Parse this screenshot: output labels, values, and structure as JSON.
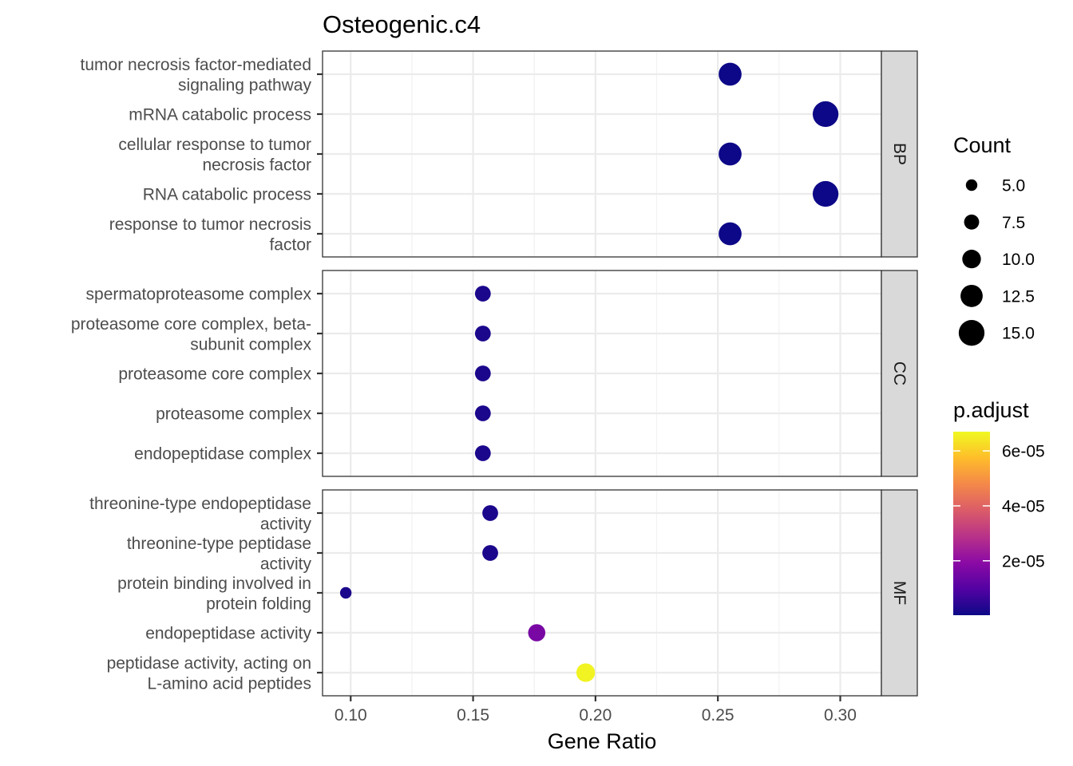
{
  "chart_data": {
    "type": "scatter",
    "title": "Osteogenic.c4",
    "xlabel": "Gene Ratio",
    "ylabel": "",
    "xlim": [
      0.0885,
      0.3168
    ],
    "xticks": [
      0.1,
      0.15,
      0.2,
      0.25,
      0.3
    ],
    "xtick_labels": [
      "0.10",
      "0.15",
      "0.20",
      "0.25",
      "0.30"
    ],
    "grid": true,
    "facets": [
      {
        "name": "BP",
        "terms": [
          {
            "label": "tumor necrosis factor-mediated\nsignaling pathway",
            "gene_ratio": 0.255,
            "count": 13,
            "p_adjust": 2e-07
          },
          {
            "label": "mRNA catabolic process",
            "gene_ratio": 0.294,
            "count": 15,
            "p_adjust": 2e-07
          },
          {
            "label": "cellular response to tumor\nnecrosis factor",
            "gene_ratio": 0.255,
            "count": 13,
            "p_adjust": 2e-07
          },
          {
            "label": "RNA catabolic process",
            "gene_ratio": 0.294,
            "count": 15,
            "p_adjust": 2e-07
          },
          {
            "label": "response to tumor necrosis\nfactor",
            "gene_ratio": 0.255,
            "count": 13,
            "p_adjust": 2e-07
          }
        ]
      },
      {
        "name": "CC",
        "terms": [
          {
            "label": "spermatoproteasome complex",
            "gene_ratio": 0.154,
            "count": 8,
            "p_adjust": 2e-06
          },
          {
            "label": "proteasome core complex, beta-\nsubunit complex",
            "gene_ratio": 0.154,
            "count": 8,
            "p_adjust": 2e-06
          },
          {
            "label": "proteasome core complex",
            "gene_ratio": 0.154,
            "count": 8,
            "p_adjust": 2e-06
          },
          {
            "label": "proteasome complex",
            "gene_ratio": 0.154,
            "count": 8,
            "p_adjust": 2e-06
          },
          {
            "label": "endopeptidase complex",
            "gene_ratio": 0.154,
            "count": 8,
            "p_adjust": 2e-06
          }
        ]
      },
      {
        "name": "MF",
        "terms": [
          {
            "label": "threonine-type endopeptidase\nactivity",
            "gene_ratio": 0.157,
            "count": 8,
            "p_adjust": 2e-06
          },
          {
            "label": "threonine-type peptidase\nactivity",
            "gene_ratio": 0.157,
            "count": 8,
            "p_adjust": 2e-06
          },
          {
            "label": "protein binding involved in\nprotein folding",
            "gene_ratio": 0.098,
            "count": 5,
            "p_adjust": 2e-06
          },
          {
            "label": "endopeptidase activity",
            "gene_ratio": 0.176,
            "count": 9,
            "p_adjust": 1.6e-05
          },
          {
            "label": "peptidase activity, acting on\nL-amino acid peptides",
            "gene_ratio": 0.196,
            "count": 10,
            "p_adjust": 6.6e-05
          }
        ]
      }
    ],
    "size_legend": {
      "title": "Count",
      "breaks": [
        5.0,
        7.5,
        10.0,
        12.5,
        15.0
      ],
      "labels": [
        "5.0",
        "7.5",
        "10.0",
        "12.5",
        "15.0"
      ]
    },
    "color_legend": {
      "title": "p.adjust",
      "range": [
        2e-07,
        6.7e-05
      ],
      "breaks": [
        2e-05,
        4e-05,
        6e-05
      ],
      "labels": [
        "2e-05",
        "4e-05",
        "6e-05"
      ],
      "colors": [
        "#0d0887",
        "#5302a3",
        "#8b0aa5",
        "#b83289",
        "#db5c68",
        "#f48849",
        "#febd2a",
        "#f0f921"
      ]
    },
    "legend_position": "right"
  }
}
